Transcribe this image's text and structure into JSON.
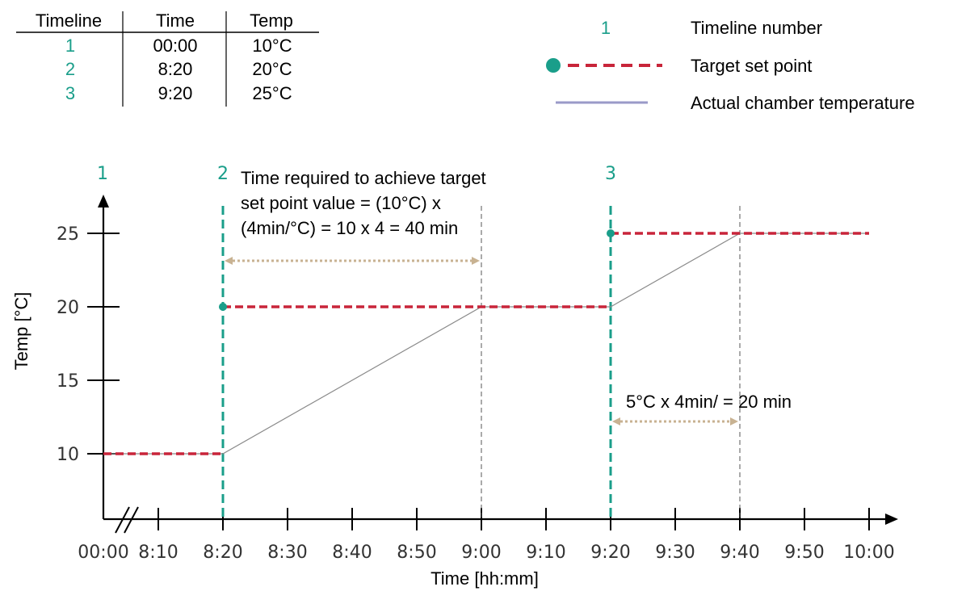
{
  "colors": {
    "timeline": "#1a9e8a",
    "setpoint": "#c8253a",
    "actual": "#9a9ac8",
    "arrow": "#c8b292",
    "axis": "#000000"
  },
  "table": {
    "headers": [
      "Timeline",
      "Time",
      "Temp"
    ],
    "rows": [
      {
        "timeline": "1",
        "time": "00:00",
        "temp": "10°C"
      },
      {
        "timeline": "2",
        "time": "8:20",
        "temp": "20°C"
      },
      {
        "timeline": "3",
        "time": "9:20",
        "temp": "25°C"
      }
    ]
  },
  "legend": {
    "timeline_symbol": "1",
    "timeline_label": "Timeline number",
    "setpoint_label": "Target set point",
    "actual_label": "Actual chamber temperature"
  },
  "annotations": {
    "first": [
      "Time required to achieve target",
      "set point value = (10°C) x",
      "(4min/°C) = 10 x 4 = 40 min"
    ],
    "second": "5°C x 4min/ = 20 min"
  },
  "chart_data": {
    "type": "line",
    "xlabel": "Time [hh:mm]",
    "ylabel": "Temp [°C]",
    "x_ticks": [
      "00:00",
      "8:10",
      "8:20",
      "8:30",
      "8:40",
      "8:50",
      "9:00",
      "9:10",
      "9:20",
      "9:30",
      "9:40",
      "9:50",
      "10:00"
    ],
    "y_ticks": [
      10,
      15,
      20,
      25
    ],
    "axis_break": "between 00:00 and 8:10",
    "timelines": [
      {
        "label": "1",
        "time": "00:00",
        "temp": 10
      },
      {
        "label": "2",
        "time": "8:20",
        "temp": 20
      },
      {
        "label": "3",
        "time": "9:20",
        "temp": 25
      }
    ],
    "series": [
      {
        "name": "Target set point",
        "points": [
          [
            "00:00",
            10
          ],
          [
            "8:20",
            10
          ],
          [
            "8:20",
            20
          ],
          [
            "9:20",
            20
          ],
          [
            "9:20",
            25
          ],
          [
            "10:00",
            25
          ]
        ]
      },
      {
        "name": "Actual chamber temperature",
        "points": [
          [
            "00:00",
            10
          ],
          [
            "8:20",
            10
          ],
          [
            "9:00",
            20
          ],
          [
            "9:20",
            20
          ],
          [
            "9:40",
            25
          ],
          [
            "10:00",
            25
          ]
        ]
      }
    ],
    "reference_lines": [
      "9:00",
      "9:40"
    ],
    "spans": [
      {
        "from": "8:20",
        "to": "9:00",
        "minutes": 40
      },
      {
        "from": "9:20",
        "to": "9:40",
        "minutes": 20
      }
    ]
  }
}
